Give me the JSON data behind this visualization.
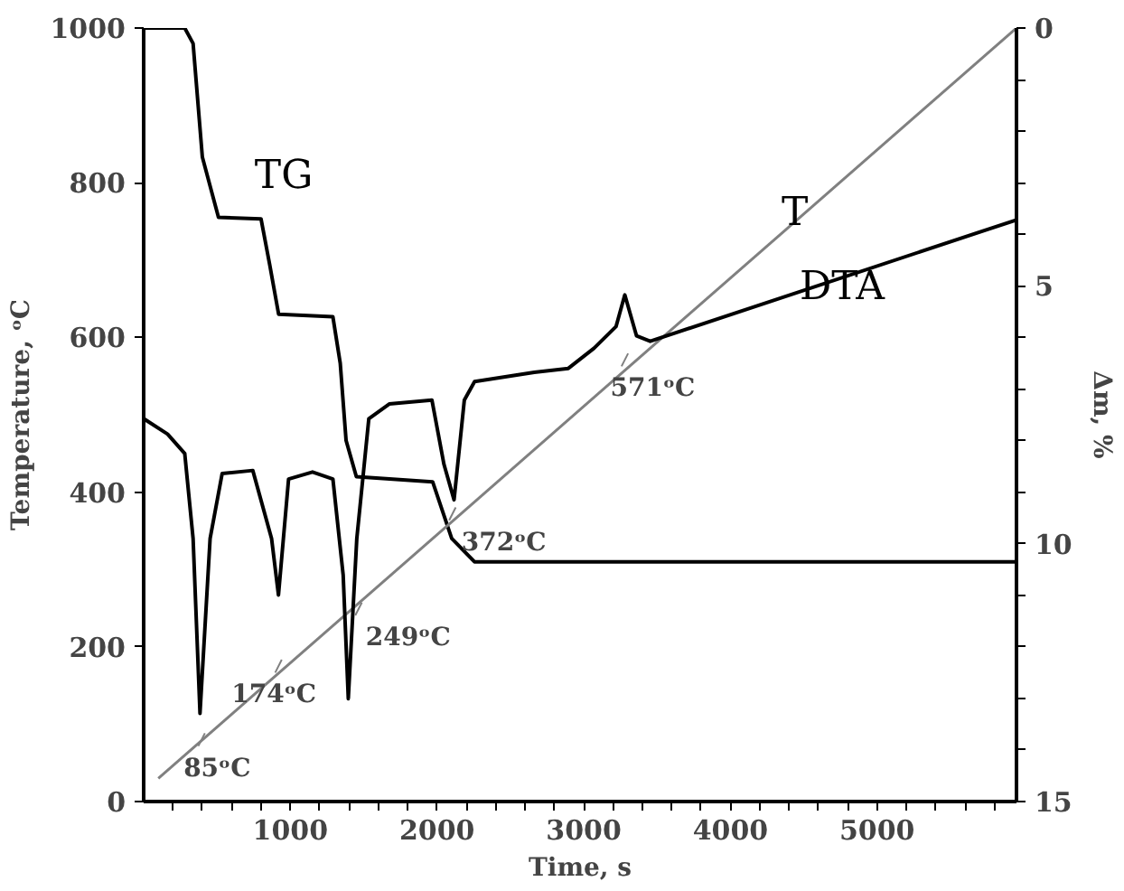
{
  "chart_data": {
    "type": "line",
    "xlabel": "Time, s",
    "ylabel": "Temperature, ᵒC",
    "y2label": "Δm, %",
    "xlim": [
      0,
      5950
    ],
    "ylim": [
      0,
      1000
    ],
    "y2lim": [
      15,
      0
    ],
    "xticks": [
      {
        "value": 200,
        "label": null
      },
      {
        "value": 400,
        "label": null
      },
      {
        "value": 600,
        "label": null
      },
      {
        "value": 800,
        "label": null
      },
      1000,
      {
        "value": 1200,
        "label": null
      },
      {
        "value": 1400,
        "label": null
      },
      {
        "value": 1600,
        "label": null
      },
      {
        "value": 1800,
        "label": null
      },
      2000,
      {
        "value": 2200,
        "label": null
      },
      {
        "value": 2400,
        "label": null
      },
      {
        "value": 2600,
        "label": null
      },
      {
        "value": 2800,
        "label": null
      },
      3000,
      {
        "value": 3200,
        "label": null
      },
      {
        "value": 3400,
        "label": null
      },
      {
        "value": 3600,
        "label": null
      },
      {
        "value": 3800,
        "label": null
      },
      4000,
      {
        "value": 4200,
        "label": null
      },
      {
        "value": 4400,
        "label": null
      },
      {
        "value": 4600,
        "label": null
      },
      {
        "value": 4800,
        "label": null
      },
      5000,
      {
        "value": 5200,
        "label": null
      },
      {
        "value": 5400,
        "label": null
      },
      {
        "value": 5600,
        "label": null
      },
      {
        "value": 5800,
        "label": null
      }
    ],
    "yticks": [
      0,
      200,
      400,
      600,
      800,
      1000
    ],
    "y2ticks": [
      0,
      {
        "value": 1,
        "label": null
      },
      {
        "value": 2,
        "label": null
      },
      {
        "value": 3,
        "label": null
      },
      {
        "value": 4,
        "label": null
      },
      5,
      {
        "value": 6,
        "label": null
      },
      {
        "value": 7,
        "label": null
      },
      {
        "value": 8,
        "label": null
      },
      {
        "value": 9,
        "label": null
      },
      10,
      {
        "value": 11,
        "label": null
      },
      {
        "value": 12,
        "label": null
      },
      {
        "value": 13,
        "label": null
      },
      {
        "value": 14,
        "label": null
      },
      15
    ],
    "grid": false,
    "marker": "none",
    "line_style": "solid",
    "series": [
      {
        "name": "TG",
        "color": "#000000",
        "axis": "y2",
        "x": [
          0,
          280,
          337,
          400,
          510,
          800,
          860,
          920,
          1290,
          1340,
          1380,
          1450,
          1970,
          2100,
          2255,
          5950
        ],
        "values": [
          0,
          0,
          0.3,
          2.5,
          3.67,
          3.7,
          4.6,
          5.55,
          5.6,
          6.5,
          8.0,
          8.7,
          8.8,
          9.9,
          10.35,
          10.35
        ]
      },
      {
        "name": "T",
        "color": "#808080",
        "x": [
          100,
          5950
        ],
        "values": [
          30,
          1000
        ]
      },
      {
        "name": "DTA",
        "color": "#000000",
        "x": [
          0,
          163,
          280,
          337,
          384,
          453,
          535,
          744,
          872,
          919,
          988,
          1151,
          1290,
          1360,
          1395,
          1453,
          1535,
          1674,
          1965,
          2047,
          2116,
          2186,
          2256,
          2663,
          2895,
          3070,
          3220,
          3280,
          3360,
          3453,
          5950
        ],
        "values": [
          495,
          475,
          450,
          340,
          114,
          340,
          424,
          428,
          340,
          267,
          417,
          426,
          417,
          293,
          133,
          340,
          495,
          514,
          519,
          436,
          390,
          519,
          543,
          555,
          560,
          586,
          614,
          655,
          602,
          595,
          752
        ]
      }
    ],
    "annotations": [
      {
        "text": "85ᵒC",
        "x": 395,
        "y": 80
      },
      {
        "text": "174ᵒC",
        "x": 919,
        "y": 175
      },
      {
        "text": "249ᵒC",
        "x": 1465,
        "y": 249
      },
      {
        "text": "372ᵒC",
        "x": 2105,
        "y": 372
      },
      {
        "text": "571ᵒC",
        "x": 3280,
        "y": 571
      }
    ]
  }
}
